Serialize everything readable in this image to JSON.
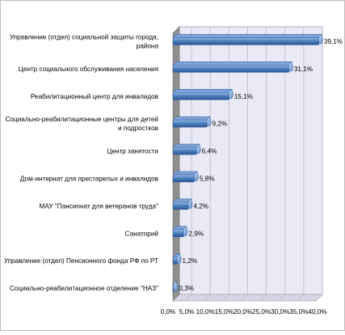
{
  "chart_data": {
    "type": "bar",
    "orientation": "horizontal",
    "categories": [
      [
        "Управление (отдел) социальной защиты города,",
        "района"
      ],
      [
        "Центр социального обслуживания населения"
      ],
      [
        "Реабилитационный центр для инвалидов"
      ],
      [
        "Социально-реабилитационные центры для детей",
        "и подростков"
      ],
      [
        "Центр занятости"
      ],
      [
        "Дом-интернат для престарелых и инвалидов"
      ],
      [
        "МАУ  \"Пансионат для ветеранов труда\""
      ],
      [
        "Санаторий"
      ],
      [
        "Управление (отдел) Пенсионного фонда РФ по РТ"
      ],
      [
        "Социально-реабилитационное отделение \"НАЗ\""
      ]
    ],
    "values": [
      39.1,
      31.1,
      15.1,
      9.2,
      6.4,
      5.8,
      4.2,
      2.9,
      1.2,
      0.3
    ],
    "data_labels": [
      "39,1%",
      "31,1%",
      "15,1%",
      "9,2%",
      "6,4%",
      "5,8%",
      "4,2%",
      "2,9%",
      "1,2%",
      "0,3%"
    ],
    "xlim": [
      0,
      40
    ],
    "x_ticks": [
      "0,0%",
      "5,0%",
      "10,0%",
      "15,0%",
      "20,0%",
      "25,0%",
      "30,0%",
      "35,0%",
      "40,0%"
    ],
    "grid": "vertical",
    "legend": "none",
    "colors": {
      "bar_light": "#9bbbe8",
      "bar_mid": "#4f81bd",
      "bar_dark": "#2c5796",
      "plot_bg": "#eaeaf7",
      "wall_side": "#8f8f8f",
      "gridline": "#b8b8c8"
    }
  }
}
